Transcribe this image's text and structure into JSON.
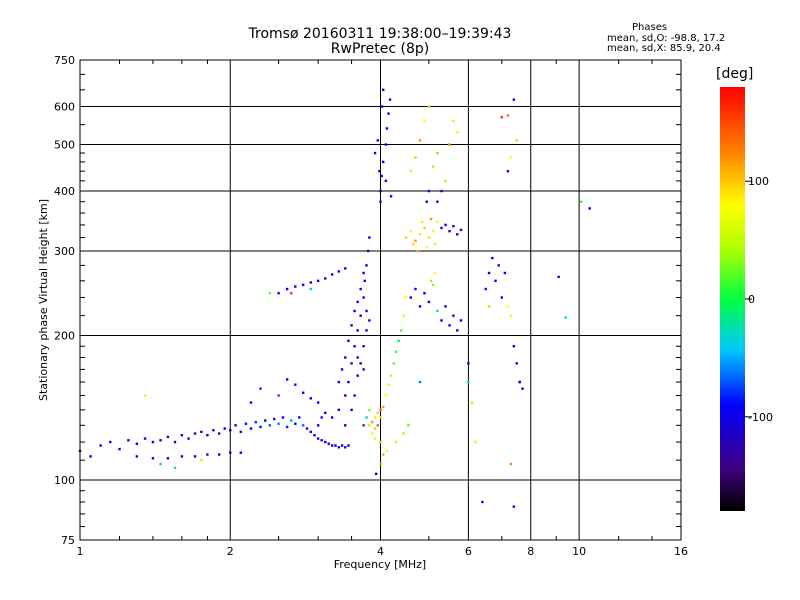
{
  "header": {
    "title_line1": "Tromsø 20160311 19:38:00–19:39:43",
    "title_line2": "RwPretec (8p)",
    "phases_heading": "Phases",
    "phases_o": "mean, sd,O: -98.8, 17.2",
    "phases_x": "mean, sd,X: 85.9, 20.4"
  },
  "chart_data": {
    "type": "scatter",
    "xscale": "log",
    "yscale": "log",
    "xlabel": "Frequency [MHz]",
    "ylabel": "Stationary phase Virtual Height [km]",
    "xlim": [
      1,
      16
    ],
    "ylim": [
      75,
      750
    ],
    "xticks": [
      1,
      2,
      4,
      6,
      8,
      10,
      16
    ],
    "yticks": [
      75,
      100,
      200,
      300,
      400,
      500,
      600,
      750
    ],
    "grid": true,
    "colorbar": {
      "label": "[deg]",
      "range": [
        -180,
        180
      ],
      "ticks": [
        100,
        0,
        -100
      ]
    },
    "points": [
      [
        1.0,
        115,
        -110
      ],
      [
        1.05,
        112,
        -105
      ],
      [
        1.1,
        118,
        -100
      ],
      [
        1.15,
        120,
        -98
      ],
      [
        1.2,
        116,
        -112
      ],
      [
        1.25,
        121,
        -95
      ],
      [
        1.3,
        119,
        -104
      ],
      [
        1.35,
        122,
        -100
      ],
      [
        1.4,
        120,
        -108
      ],
      [
        1.45,
        121,
        -97
      ],
      [
        1.5,
        123,
        -102
      ],
      [
        1.55,
        120,
        -110
      ],
      [
        1.6,
        124,
        -96
      ],
      [
        1.65,
        122,
        -100
      ],
      [
        1.7,
        125,
        -105
      ],
      [
        1.75,
        126,
        -93
      ],
      [
        1.8,
        124,
        -101
      ],
      [
        1.85,
        127,
        -99
      ],
      [
        1.9,
        125,
        -107
      ],
      [
        1.95,
        128,
        -94
      ],
      [
        2.0,
        127,
        -100
      ],
      [
        2.05,
        130,
        -92
      ],
      [
        2.1,
        126,
        -104
      ],
      [
        2.15,
        131,
        -85
      ],
      [
        2.2,
        128,
        -95
      ],
      [
        2.25,
        132,
        -78
      ],
      [
        2.3,
        129,
        -90
      ],
      [
        2.35,
        133,
        -102
      ],
      [
        2.4,
        130,
        -70
      ],
      [
        2.45,
        134,
        -88
      ],
      [
        2.5,
        131,
        -60
      ],
      [
        2.55,
        135,
        -95
      ],
      [
        2.6,
        129,
        -82
      ],
      [
        2.65,
        133,
        -55
      ],
      [
        2.7,
        131,
        -90
      ],
      [
        2.75,
        135,
        -100
      ],
      [
        2.8,
        130,
        -65
      ],
      [
        2.85,
        128,
        -92
      ],
      [
        2.9,
        126,
        -104
      ],
      [
        2.95,
        124,
        -98
      ],
      [
        3.0,
        122,
        -100
      ],
      [
        3.05,
        121,
        -106
      ],
      [
        3.1,
        120,
        -97
      ],
      [
        3.15,
        119,
        -102
      ],
      [
        3.2,
        118,
        -109
      ],
      [
        3.25,
        118,
        -96
      ],
      [
        3.3,
        117,
        -103
      ],
      [
        3.35,
        118,
        -99
      ],
      [
        3.4,
        117,
        -105
      ],
      [
        3.45,
        118,
        -95
      ],
      [
        1.3,
        112,
        -104
      ],
      [
        1.4,
        111,
        -99
      ],
      [
        1.5,
        111,
        -107
      ],
      [
        1.6,
        112,
        -96
      ],
      [
        1.7,
        112,
        -101
      ],
      [
        1.8,
        113,
        -108
      ],
      [
        1.9,
        113,
        -97
      ],
      [
        2.0,
        114,
        -103
      ],
      [
        2.1,
        114,
        -95
      ],
      [
        1.45,
        108,
        -40
      ],
      [
        1.55,
        106,
        -20
      ],
      [
        1.75,
        110,
        60
      ],
      [
        1.35,
        150,
        60
      ],
      [
        2.2,
        145,
        -90
      ],
      [
        2.3,
        155,
        -80
      ],
      [
        2.5,
        150,
        -70
      ],
      [
        2.6,
        162,
        -95
      ],
      [
        2.7,
        158,
        -85
      ],
      [
        2.8,
        152,
        -100
      ],
      [
        2.9,
        148,
        -90
      ],
      [
        3.0,
        145,
        -95
      ],
      [
        3.1,
        138,
        -92
      ],
      [
        3.2,
        135,
        -104
      ],
      [
        3.3,
        140,
        -98
      ],
      [
        3.4,
        150,
        -100
      ],
      [
        3.45,
        160,
        -95
      ],
      [
        3.5,
        175,
        -100
      ],
      [
        3.55,
        190,
        -92
      ],
      [
        3.6,
        205,
        -98
      ],
      [
        3.65,
        220,
        -104
      ],
      [
        3.7,
        240,
        -96
      ],
      [
        3.72,
        260,
        -101
      ],
      [
        3.75,
        280,
        -95
      ],
      [
        3.78,
        300,
        -100
      ],
      [
        3.8,
        320,
        -98
      ],
      [
        3.4,
        130,
        -105
      ],
      [
        3.5,
        140,
        -97
      ],
      [
        3.55,
        150,
        -100
      ],
      [
        3.6,
        165,
        -94
      ],
      [
        3.65,
        175,
        -103
      ],
      [
        3.7,
        190,
        -96
      ],
      [
        3.75,
        205,
        -100
      ],
      [
        3.8,
        215,
        -92
      ],
      [
        3.6,
        180,
        -98
      ],
      [
        3.7,
        170,
        -101
      ],
      [
        3.3,
        160,
        -99
      ],
      [
        3.35,
        170,
        -96
      ],
      [
        3.4,
        180,
        -102
      ],
      [
        3.45,
        195,
        -98
      ],
      [
        3.5,
        210,
        -95
      ],
      [
        3.55,
        225,
        -100
      ],
      [
        3.6,
        235,
        -96
      ],
      [
        3.65,
        250,
        -103
      ],
      [
        3.7,
        270,
        -97
      ],
      [
        3.75,
        225,
        -100
      ],
      [
        2.5,
        245,
        -100
      ],
      [
        2.6,
        250,
        -95
      ],
      [
        2.7,
        253,
        -100
      ],
      [
        2.8,
        255,
        -96
      ],
      [
        2.9,
        258,
        -102
      ],
      [
        3.0,
        260,
        -98
      ],
      [
        3.1,
        263,
        -95
      ],
      [
        3.2,
        268,
        -100
      ],
      [
        3.3,
        272,
        -92
      ],
      [
        3.4,
        276,
        -98
      ],
      [
        2.4,
        245,
        20
      ],
      [
        2.65,
        245,
        160
      ],
      [
        2.9,
        250,
        -40
      ],
      [
        3.0,
        130,
        -100
      ],
      [
        3.05,
        135,
        -95
      ],
      [
        3.8,
        130,
        60
      ],
      [
        3.85,
        132,
        120
      ],
      [
        3.9,
        135,
        90
      ],
      [
        3.95,
        138,
        100
      ],
      [
        4.0,
        140,
        130
      ],
      [
        4.05,
        142,
        110
      ],
      [
        4.1,
        150,
        80
      ],
      [
        4.15,
        158,
        60
      ],
      [
        4.2,
        165,
        40
      ],
      [
        4.25,
        175,
        20
      ],
      [
        4.3,
        185,
        10
      ],
      [
        4.35,
        195,
        -10
      ],
      [
        4.4,
        205,
        20
      ],
      [
        4.45,
        220,
        60
      ],
      [
        4.5,
        240,
        80
      ],
      [
        3.85,
        125,
        70
      ],
      [
        3.9,
        128,
        100
      ],
      [
        3.95,
        130,
        140
      ],
      [
        4.0,
        135,
        90
      ],
      [
        3.7,
        130,
        -80
      ],
      [
        3.75,
        135,
        -40
      ],
      [
        3.8,
        140,
        30
      ],
      [
        3.9,
        122,
        60
      ],
      [
        4.0,
        120,
        100
      ],
      [
        4.05,
        113,
        110
      ],
      [
        4.0,
        400,
        -100
      ],
      [
        4.02,
        430,
        -95
      ],
      [
        4.05,
        460,
        -98
      ],
      [
        4.1,
        500,
        -102
      ],
      [
        4.12,
        540,
        -96
      ],
      [
        4.15,
        580,
        -100
      ],
      [
        4.18,
        620,
        -92
      ],
      [
        4.0,
        380,
        -104
      ],
      [
        3.98,
        440,
        -99
      ],
      [
        4.03,
        600,
        -97
      ],
      [
        3.9,
        480,
        -101
      ],
      [
        3.95,
        510,
        -95
      ],
      [
        4.1,
        420,
        -100
      ],
      [
        4.2,
        390,
        -98
      ],
      [
        4.05,
        650,
        -103
      ],
      [
        4.5,
        320,
        100
      ],
      [
        4.6,
        330,
        80
      ],
      [
        4.7,
        315,
        120
      ],
      [
        4.8,
        325,
        60
      ],
      [
        4.9,
        335,
        100
      ],
      [
        5.0,
        320,
        90
      ],
      [
        5.1,
        330,
        70
      ],
      [
        5.2,
        345,
        80
      ],
      [
        5.3,
        335,
        -100
      ],
      [
        5.4,
        340,
        -95
      ],
      [
        5.5,
        330,
        -98
      ],
      [
        5.6,
        338,
        -102
      ],
      [
        5.7,
        325,
        -96
      ],
      [
        5.8,
        332,
        -100
      ],
      [
        4.65,
        310,
        95
      ],
      [
        4.75,
        300,
        110
      ],
      [
        4.85,
        345,
        85
      ],
      [
        4.95,
        305,
        75
      ],
      [
        5.05,
        350,
        120
      ],
      [
        5.15,
        310,
        60
      ],
      [
        4.6,
        240,
        -100
      ],
      [
        4.7,
        250,
        -96
      ],
      [
        4.8,
        230,
        -101
      ],
      [
        4.9,
        245,
        -98
      ],
      [
        5.0,
        235,
        -95
      ],
      [
        5.1,
        255,
        30
      ],
      [
        5.2,
        225,
        -20
      ],
      [
        5.3,
        215,
        -100
      ],
      [
        5.4,
        230,
        -97
      ],
      [
        5.5,
        210,
        -103
      ],
      [
        5.6,
        220,
        -99
      ],
      [
        5.7,
        205,
        -100
      ],
      [
        5.8,
        215,
        -96
      ],
      [
        5.05,
        260,
        100
      ],
      [
        5.15,
        270,
        80
      ],
      [
        4.6,
        440,
        60
      ],
      [
        4.7,
        470,
        100
      ],
      [
        4.8,
        510,
        120
      ],
      [
        4.9,
        560,
        80
      ],
      [
        5.0,
        600,
        40
      ],
      [
        5.1,
        450,
        100
      ],
      [
        5.2,
        480,
        110
      ],
      [
        5.3,
        400,
        -100
      ],
      [
        5.4,
        420,
        100
      ],
      [
        5.5,
        500,
        120
      ],
      [
        5.6,
        560,
        90
      ],
      [
        5.7,
        530,
        70
      ],
      [
        5.0,
        400,
        -98
      ],
      [
        4.95,
        380,
        -100
      ],
      [
        5.2,
        380,
        -96
      ],
      [
        6.5,
        250,
        -100
      ],
      [
        6.6,
        270,
        -95
      ],
      [
        6.7,
        290,
        -100
      ],
      [
        6.8,
        260,
        -97
      ],
      [
        6.9,
        280,
        -102
      ],
      [
        7.0,
        240,
        -98
      ],
      [
        7.1,
        270,
        -96
      ],
      [
        7.2,
        230,
        80
      ],
      [
        7.3,
        220,
        70
      ],
      [
        6.6,
        230,
        100
      ],
      [
        7.4,
        190,
        -100
      ],
      [
        7.5,
        175,
        -96
      ],
      [
        7.6,
        160,
        -100
      ],
      [
        7.7,
        155,
        -98
      ],
      [
        7.2,
        575,
        130
      ],
      [
        7.0,
        570,
        160
      ],
      [
        7.3,
        470,
        80
      ],
      [
        7.2,
        440,
        -100
      ],
      [
        7.4,
        620,
        -95
      ],
      [
        7.5,
        510,
        100
      ],
      [
        7.3,
        108,
        130
      ],
      [
        7.4,
        88,
        -100
      ],
      [
        6.4,
        90,
        -98
      ],
      [
        6.2,
        120,
        60
      ],
      [
        6.0,
        160,
        -20
      ],
      [
        6.1,
        145,
        40
      ],
      [
        6.0,
        175,
        -100
      ],
      [
        7.6,
        160,
        -96
      ],
      [
        9.1,
        265,
        -100
      ],
      [
        9.4,
        218,
        -30
      ],
      [
        10.1,
        380,
        10
      ],
      [
        10.5,
        368,
        -100
      ],
      [
        3.92,
        103,
        -100
      ],
      [
        4.02,
        108,
        60
      ],
      [
        4.12,
        115,
        80
      ],
      [
        4.3,
        120,
        90
      ],
      [
        4.45,
        125,
        40
      ],
      [
        4.55,
        130,
        20
      ],
      [
        4.8,
        160,
        -60
      ]
    ]
  }
}
